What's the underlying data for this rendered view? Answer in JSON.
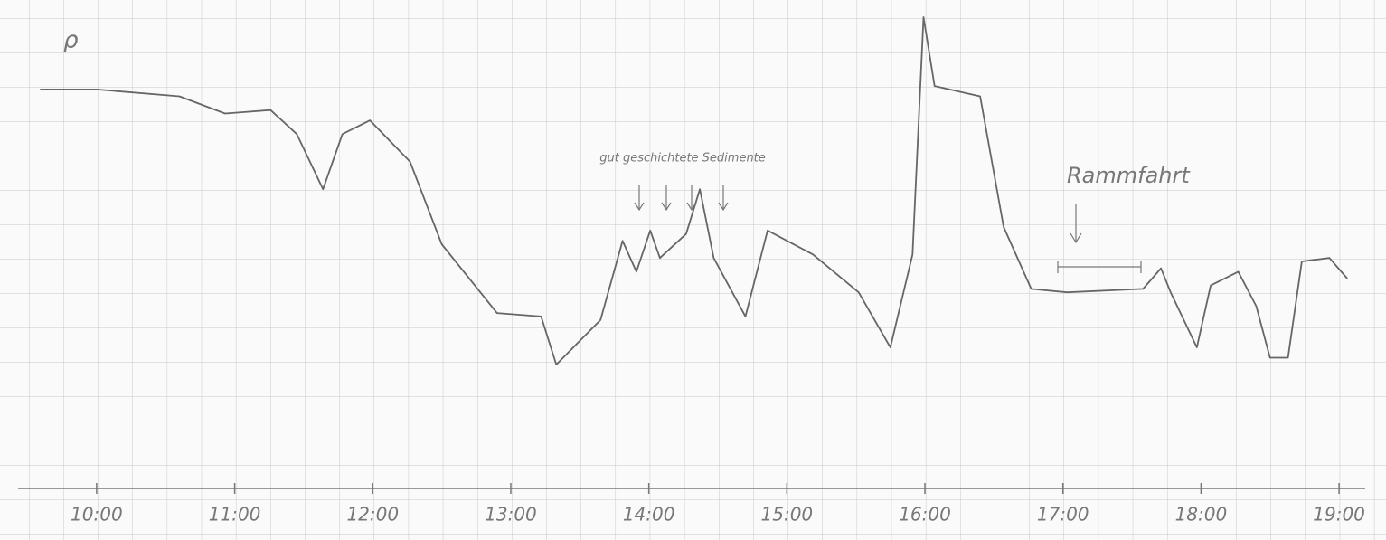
{
  "chart_data": {
    "type": "line",
    "y_label": "ρ",
    "annotations": [
      "gut geschichtete Sedimente",
      "Rammfahrt"
    ],
    "color": "#666666",
    "x": [
      9.59,
      10,
      10.6,
      10.93,
      11.26,
      11.45,
      11.64,
      11.78,
      11.98,
      12.27,
      12.5,
      12.9,
      13.22,
      13.33,
      13.65,
      13.81,
      13.91,
      14.01,
      14.08,
      14.27,
      14.37,
      14.47,
      14.7,
      14.86,
      15.19,
      15.52,
      15.75,
      15.91,
      15.99,
      16.07,
      16.4,
      16.57,
      16.77,
      17.03,
      17.58,
      17.71,
      17.78,
      17.97,
      18.07,
      18.27,
      18.4,
      18.5,
      18.63,
      18.73,
      18.93,
      19.06
    ],
    "values": [
      11.6,
      11.6,
      11.4,
      10.9,
      11.0,
      10.3,
      8.7,
      10.3,
      10.7,
      9.5,
      7.1,
      5.1,
      5.0,
      3.6,
      4.9,
      7.2,
      6.3,
      7.5,
      6.7,
      7.4,
      8.7,
      6.7,
      5.0,
      7.5,
      6.8,
      5.7,
      4.1,
      6.8,
      13.7,
      11.7,
      11.4,
      7.6,
      5.8,
      5.7,
      5.8,
      6.4,
      5.7,
      4.1,
      5.9,
      6.3,
      5.3,
      3.8,
      3.8,
      6.6,
      6.7,
      6.1
    ],
    "xlim": [
      9.3,
      19.34
    ],
    "ylim": [
      0,
      14.2
    ],
    "xticks": [
      {
        "value": 10,
        "label": "10:00"
      },
      {
        "value": 11,
        "label": "11:00"
      },
      {
        "value": 12,
        "label": "12:00"
      },
      {
        "value": 13,
        "label": "13:00"
      },
      {
        "value": 14,
        "label": "14:00"
      },
      {
        "value": 15,
        "label": "15:00"
      },
      {
        "value": 16,
        "label": "16:00"
      },
      {
        "value": 17,
        "label": "17:00"
      },
      {
        "value": 18,
        "label": "18:00"
      },
      {
        "value": 19,
        "label": "19:00"
      }
    ]
  }
}
